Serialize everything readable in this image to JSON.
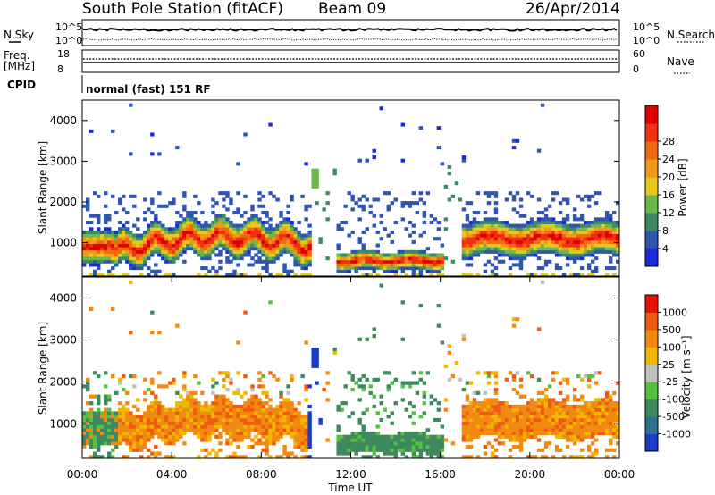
{
  "header": {
    "title": "South Pole Station (fitACF)",
    "beam": "Beam 09",
    "date": "26/Apr/2014"
  },
  "top_panels": {
    "nsky_label": "N.Sky",
    "nsky_ticks": [
      "10^5",
      "10^0"
    ],
    "nsearch_label": "N.Search",
    "nsearch_ticks": [
      "10^5",
      "10^0"
    ],
    "freq_label": "Freq.",
    "freq_unit": "[MHz]",
    "freq_ticks": [
      "18",
      "8"
    ],
    "nave_label": "Nave",
    "nave_ticks": [
      "60",
      "0"
    ],
    "cpid_label": "CPID",
    "cpid_text": "normal (fast) 151 RF"
  },
  "chart_data": [
    {
      "type": "heatmap",
      "panel": "power",
      "ylabel": "Slant Range [km]",
      "ylim": [
        180,
        4500
      ],
      "yticks": [
        "1000",
        "2000",
        "3000",
        "4000"
      ],
      "colorbar_label": "Power [dB]",
      "colorbar_ticks": [
        "4",
        "8",
        "12",
        "16",
        "20",
        "24",
        "28"
      ],
      "colors": [
        "#1a2bdc",
        "#2e56b0",
        "#3f8a66",
        "#6cb84a",
        "#e8c81a",
        "#f09a1a",
        "#f26a10",
        "#f03010",
        "#e00000"
      ],
      "bands": [
        {
          "t0": 0.0,
          "t1": 1.5,
          "r0": 300,
          "r1": 1500,
          "level": "high"
        },
        {
          "t0": 1.5,
          "t1": 10.2,
          "r0": 400,
          "r1": 1800,
          "level": "high"
        },
        {
          "t0": 11.5,
          "t1": 16.0,
          "r0": 350,
          "r1": 800,
          "level": "high"
        },
        {
          "t0": 17.0,
          "t1": 24.0,
          "r0": 500,
          "r1": 1600,
          "level": "mid"
        }
      ]
    },
    {
      "type": "heatmap",
      "panel": "velocity",
      "xlabel": "Time UT",
      "xticks": [
        "00:00",
        "04:00",
        "08:00",
        "12:00",
        "16:00",
        "20:00",
        "00:00"
      ],
      "xlim_hours": [
        0,
        24
      ],
      "ylabel": "Slant Range [km]",
      "ylim": [
        180,
        4500
      ],
      "yticks": [
        "1000",
        "2000",
        "3000",
        "4000"
      ],
      "colorbar_label": "Velocity [m s⁻¹]",
      "colorbar_ticks": [
        "1000",
        "500",
        "100",
        "25",
        "-25",
        "-100",
        "-500",
        "-1000"
      ],
      "colors": [
        "#1a3cc8",
        "#2e7090",
        "#3e8a5e",
        "#56c040",
        "#c0c0c0",
        "#f0b800",
        "#f08a10",
        "#f05a10",
        "#e81000"
      ]
    }
  ]
}
